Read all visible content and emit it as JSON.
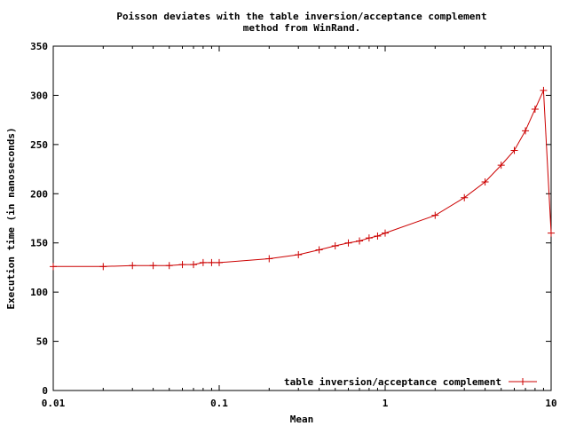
{
  "chart_data": {
    "type": "line",
    "title_lines": [
      "Poisson deviates with the table inversion/acceptance complement",
      "method from WinRand."
    ],
    "xlabel": "Mean",
    "ylabel": "Execution time (in nanoseconds)",
    "x_scale": "log",
    "xlim": [
      0.01,
      10
    ],
    "ylim": [
      0,
      350
    ],
    "x_ticks": [
      {
        "value": 0.01,
        "label": "0.01"
      },
      {
        "value": 0.1,
        "label": "0.1"
      },
      {
        "value": 1,
        "label": "1"
      },
      {
        "value": 10,
        "label": "10"
      }
    ],
    "y_ticks": [
      {
        "value": 0,
        "label": "0"
      },
      {
        "value": 50,
        "label": "50"
      },
      {
        "value": 100,
        "label": "100"
      },
      {
        "value": 150,
        "label": "150"
      },
      {
        "value": 200,
        "label": "200"
      },
      {
        "value": 250,
        "label": "250"
      },
      {
        "value": 300,
        "label": "300"
      },
      {
        "value": 350,
        "label": "350"
      }
    ],
    "grid": false,
    "legend_position": "bottom-right",
    "series": [
      {
        "name": "table inversion/acceptance complement",
        "color": "#cc0000",
        "marker": "plus",
        "points": [
          {
            "x": 0.01,
            "y": 126
          },
          {
            "x": 0.02,
            "y": 126
          },
          {
            "x": 0.03,
            "y": 127
          },
          {
            "x": 0.04,
            "y": 127
          },
          {
            "x": 0.05,
            "y": 127
          },
          {
            "x": 0.06,
            "y": 128
          },
          {
            "x": 0.07,
            "y": 128
          },
          {
            "x": 0.08,
            "y": 130
          },
          {
            "x": 0.09,
            "y": 130
          },
          {
            "x": 0.1,
            "y": 130
          },
          {
            "x": 0.2,
            "y": 134
          },
          {
            "x": 0.3,
            "y": 138
          },
          {
            "x": 0.4,
            "y": 143
          },
          {
            "x": 0.5,
            "y": 147
          },
          {
            "x": 0.6,
            "y": 150
          },
          {
            "x": 0.7,
            "y": 152
          },
          {
            "x": 0.8,
            "y": 155
          },
          {
            "x": 0.9,
            "y": 157
          },
          {
            "x": 1,
            "y": 160
          },
          {
            "x": 2,
            "y": 178
          },
          {
            "x": 3,
            "y": 196
          },
          {
            "x": 4,
            "y": 212
          },
          {
            "x": 5,
            "y": 229
          },
          {
            "x": 6,
            "y": 244
          },
          {
            "x": 7,
            "y": 264
          },
          {
            "x": 8,
            "y": 286
          },
          {
            "x": 9,
            "y": 305
          },
          {
            "x": 10,
            "y": 160
          }
        ]
      }
    ]
  }
}
